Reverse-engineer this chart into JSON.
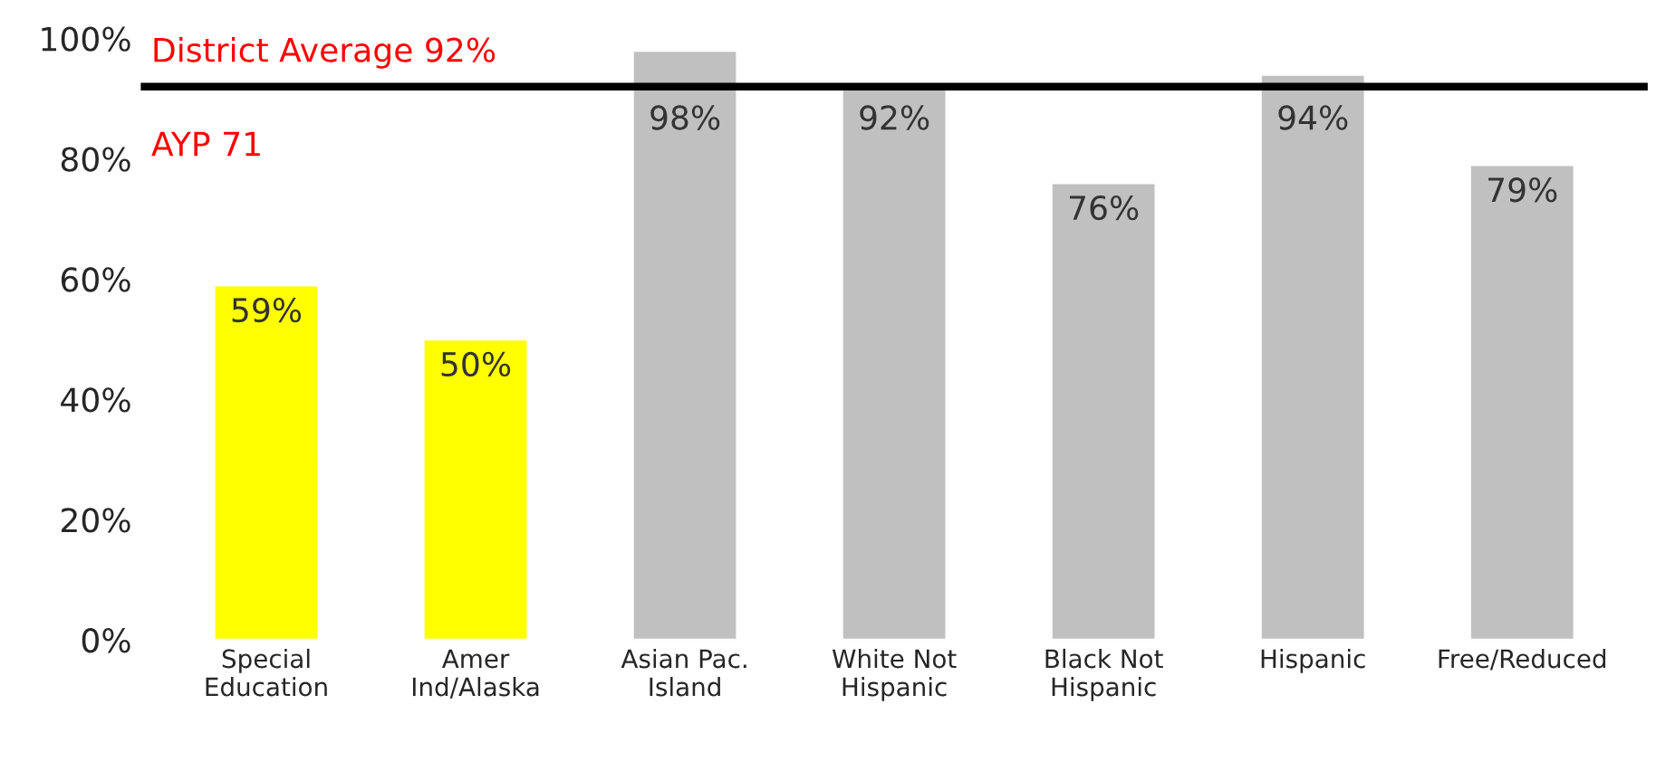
{
  "chart_data": {
    "type": "bar",
    "categories": [
      "Special\nEducation",
      "Amer\nInd/Alaska",
      "Asian Pac.\nIsland",
      "White Not\nHispanic",
      "Black Not\nHispanic",
      "Hispanic",
      "Free/Reduced"
    ],
    "values": [
      59,
      50,
      98,
      92,
      76,
      94,
      79
    ],
    "colors": [
      "#ffff00",
      "#ffff00",
      "#c0c0c0",
      "#c0c0c0",
      "#c0c0c0",
      "#c0c0c0",
      "#c0c0c0"
    ],
    "value_labels": [
      "59%",
      "50%",
      "98%",
      "92%",
      "76%",
      "94%",
      "79%"
    ],
    "ylim": [
      0,
      100
    ],
    "yticks": [
      {
        "value": 0,
        "label": "0%"
      },
      {
        "value": 20,
        "label": "20%"
      },
      {
        "value": 40,
        "label": "40%"
      },
      {
        "value": 60,
        "label": "60%"
      },
      {
        "value": 80,
        "label": "80%"
      },
      {
        "value": 100,
        "label": "100%"
      }
    ],
    "ref_lines": [
      {
        "axis": "y",
        "value": 92,
        "label": "District Average 92%",
        "color": "#000000",
        "line_style": "solid"
      }
    ],
    "annotations": [
      "AYP 71"
    ],
    "grid": false,
    "legend": false
  }
}
